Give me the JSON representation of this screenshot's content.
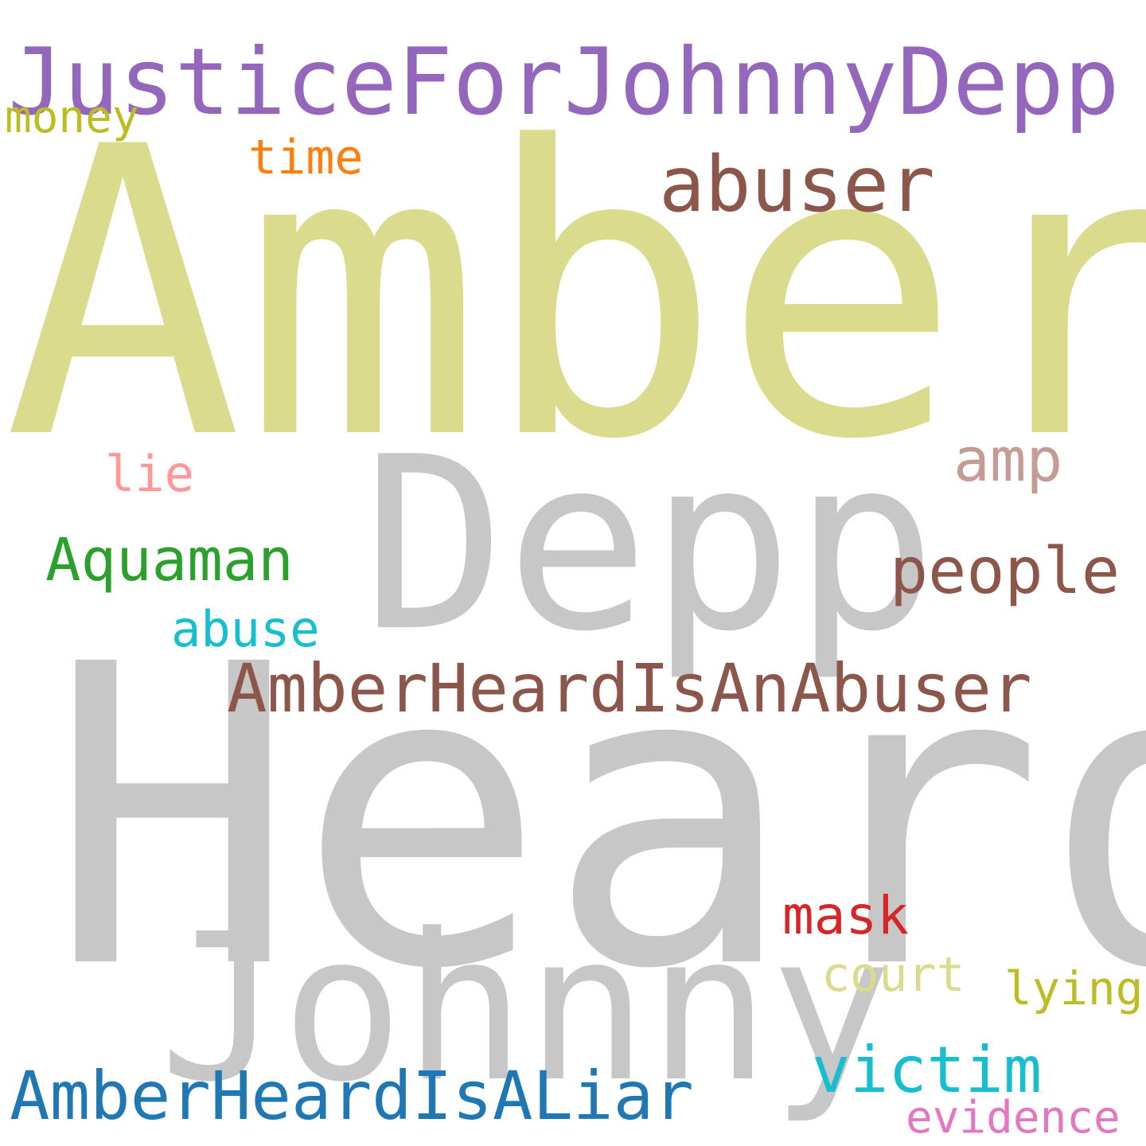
{
  "words": [
    {
      "name": "word-amber",
      "text": "Amber",
      "color": "#dbdb8d"
    },
    {
      "name": "word-heard",
      "text": "Heard",
      "color": "#c7c7c7"
    },
    {
      "name": "word-depp",
      "text": "Depp",
      "color": "#c7c7c7"
    },
    {
      "name": "word-johnny",
      "text": "Johnny",
      "color": "#c7c7c7"
    },
    {
      "name": "word-justicefor",
      "text": "JusticeForJohnnyDepp",
      "color": "#9467bd"
    },
    {
      "name": "word-heardisanabuser",
      "text": "AmberHeardIsAnAbuser",
      "color": "#8c564b"
    },
    {
      "name": "word-heardisaliar",
      "text": "AmberHeardIsALiar",
      "color": "#1f77b4"
    },
    {
      "name": "word-abuser",
      "text": "abuser",
      "color": "#8c564b"
    },
    {
      "name": "word-people",
      "text": "people",
      "color": "#8c564b"
    },
    {
      "name": "word-victim",
      "text": "victim",
      "color": "#17becf"
    },
    {
      "name": "word-aquaman",
      "text": "Aquaman",
      "color": "#2ca02c"
    },
    {
      "name": "word-amp",
      "text": "amp",
      "color": "#c49c94"
    },
    {
      "name": "word-mask",
      "text": "mask",
      "color": "#d62728"
    },
    {
      "name": "word-abuse",
      "text": "abuse",
      "color": "#17becf"
    },
    {
      "name": "word-money",
      "text": "money",
      "color": "#bcbd22"
    },
    {
      "name": "word-time",
      "text": "time",
      "color": "#ff7f0e"
    },
    {
      "name": "word-lie",
      "text": "lie",
      "color": "#ff9896"
    },
    {
      "name": "word-court",
      "text": "court",
      "color": "#dbdb8d"
    },
    {
      "name": "word-lying",
      "text": "lying",
      "color": "#bcbd22"
    },
    {
      "name": "word-evidence",
      "text": "evidence",
      "color": "#e377c2"
    }
  ]
}
